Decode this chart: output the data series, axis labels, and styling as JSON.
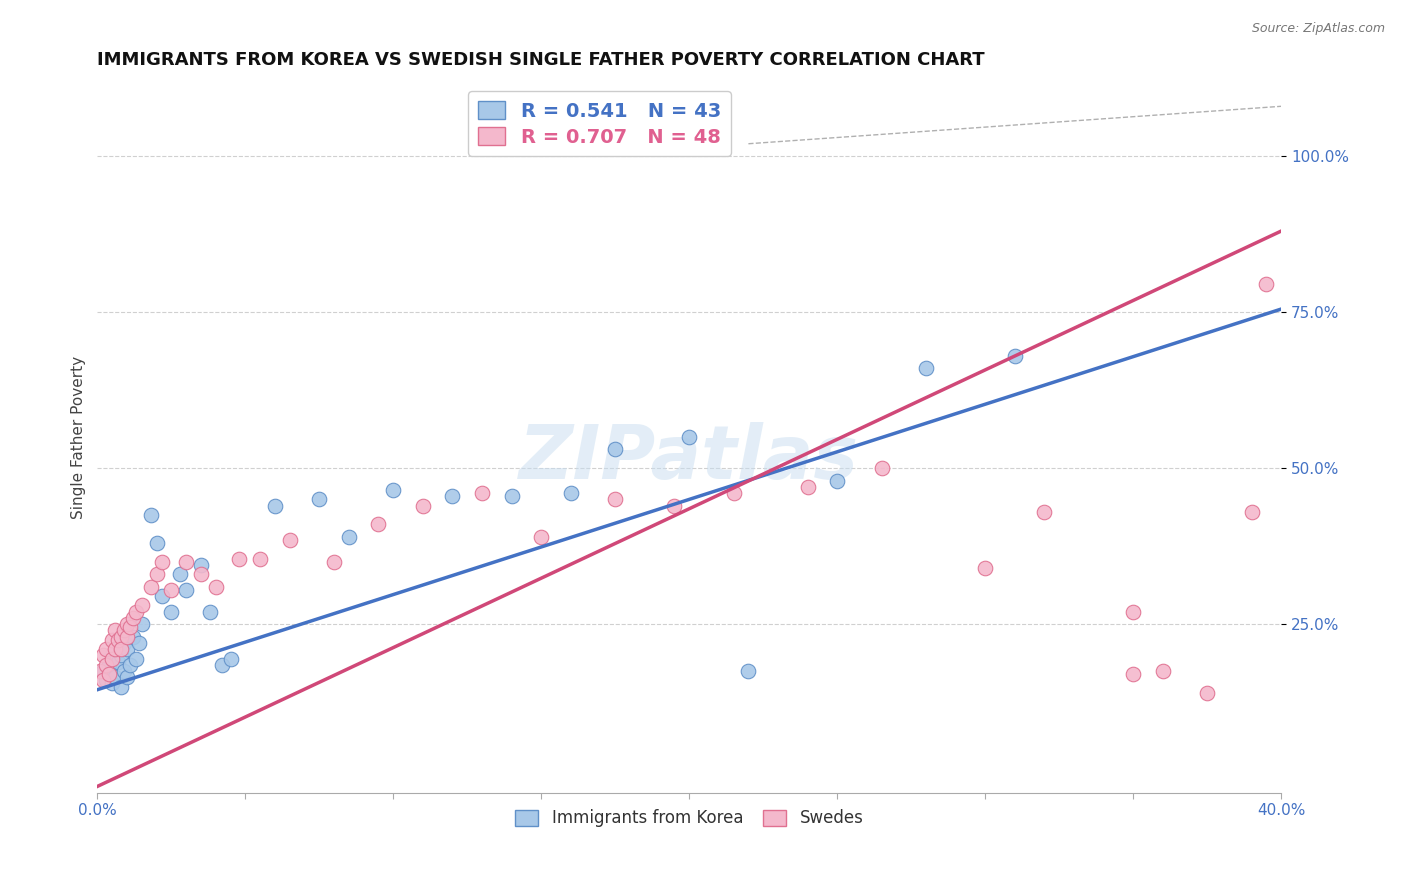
{
  "title": "IMMIGRANTS FROM KOREA VS SWEDISH SINGLE FATHER POVERTY CORRELATION CHART",
  "source": "Source: ZipAtlas.com",
  "ylabel": "Single Father Poverty",
  "xlim": [
    0.0,
    0.4
  ],
  "ylim": [
    -0.02,
    1.12
  ],
  "xticks": [
    0.0,
    0.05,
    0.1,
    0.15,
    0.2,
    0.25,
    0.3,
    0.35,
    0.4
  ],
  "ytick_positions": [
    0.25,
    0.5,
    0.75,
    1.0
  ],
  "ytick_labels": [
    "25.0%",
    "50.0%",
    "75.0%",
    "100.0%"
  ],
  "blue_R": 0.541,
  "blue_N": 43,
  "pink_R": 0.707,
  "pink_N": 48,
  "blue_color": "#a8c8e8",
  "pink_color": "#f4b8cc",
  "blue_edge_color": "#6090c8",
  "pink_edge_color": "#e07090",
  "blue_line_color": "#4472c4",
  "pink_line_color": "#d04878",
  "legend_label_blue": "Immigrants from Korea",
  "legend_label_pink": "Swedes",
  "watermark": "ZIPatlas",
  "blue_line_x0": 0.0,
  "blue_line_y0": 0.145,
  "blue_line_x1": 0.4,
  "blue_line_y1": 0.755,
  "pink_line_x0": 0.0,
  "pink_line_y0": -0.01,
  "pink_line_x1": 0.4,
  "pink_line_y1": 0.88,
  "ref_line_x0": 0.22,
  "ref_line_y0": 1.02,
  "ref_line_x1": 0.4,
  "ref_line_y1": 1.08,
  "background_color": "#ffffff",
  "grid_color": "#d0d0d0",
  "title_fontsize": 13,
  "axis_label_fontsize": 11,
  "tick_fontsize": 11,
  "point_size": 110,
  "blue_points_x": [
    0.002,
    0.003,
    0.004,
    0.004,
    0.005,
    0.005,
    0.006,
    0.007,
    0.007,
    0.008,
    0.008,
    0.009,
    0.009,
    0.01,
    0.01,
    0.011,
    0.012,
    0.013,
    0.014,
    0.015,
    0.018,
    0.02,
    0.022,
    0.025,
    0.028,
    0.03,
    0.035,
    0.038,
    0.042,
    0.045,
    0.06,
    0.075,
    0.085,
    0.1,
    0.12,
    0.14,
    0.16,
    0.175,
    0.2,
    0.22,
    0.25,
    0.28,
    0.31
  ],
  "blue_points_y": [
    0.175,
    0.16,
    0.17,
    0.185,
    0.155,
    0.2,
    0.165,
    0.19,
    0.21,
    0.15,
    0.2,
    0.175,
    0.22,
    0.165,
    0.21,
    0.185,
    0.23,
    0.195,
    0.22,
    0.25,
    0.425,
    0.38,
    0.295,
    0.27,
    0.33,
    0.305,
    0.345,
    0.27,
    0.185,
    0.195,
    0.44,
    0.45,
    0.39,
    0.465,
    0.455,
    0.455,
    0.46,
    0.53,
    0.55,
    0.175,
    0.48,
    0.66,
    0.68
  ],
  "pink_points_x": [
    0.001,
    0.002,
    0.002,
    0.003,
    0.003,
    0.004,
    0.005,
    0.005,
    0.006,
    0.006,
    0.007,
    0.008,
    0.008,
    0.009,
    0.01,
    0.01,
    0.011,
    0.012,
    0.013,
    0.015,
    0.018,
    0.02,
    0.022,
    0.025,
    0.03,
    0.035,
    0.04,
    0.048,
    0.055,
    0.065,
    0.08,
    0.095,
    0.11,
    0.13,
    0.15,
    0.175,
    0.195,
    0.215,
    0.24,
    0.265,
    0.3,
    0.32,
    0.35,
    0.375,
    0.35,
    0.36,
    0.39,
    0.395
  ],
  "pink_points_y": [
    0.175,
    0.16,
    0.2,
    0.185,
    0.21,
    0.17,
    0.195,
    0.225,
    0.21,
    0.24,
    0.225,
    0.23,
    0.21,
    0.24,
    0.23,
    0.25,
    0.245,
    0.26,
    0.27,
    0.28,
    0.31,
    0.33,
    0.35,
    0.305,
    0.35,
    0.33,
    0.31,
    0.355,
    0.355,
    0.385,
    0.35,
    0.41,
    0.44,
    0.46,
    0.39,
    0.45,
    0.44,
    0.46,
    0.47,
    0.5,
    0.34,
    0.43,
    0.27,
    0.14,
    0.17,
    0.175,
    0.43,
    0.795
  ]
}
